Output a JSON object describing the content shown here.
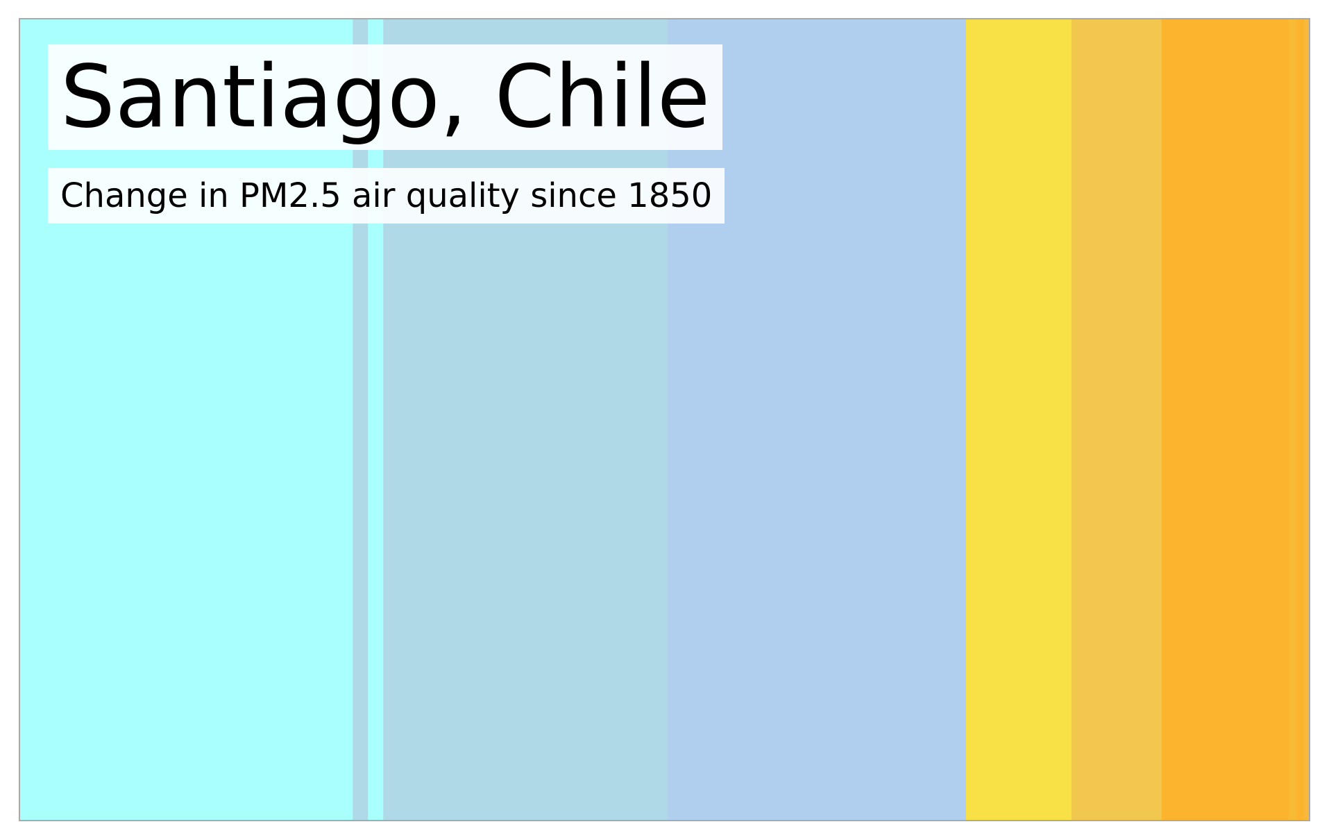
{
  "chart_data": {
    "type": "heatmap",
    "title": "Santiago, Chile",
    "subtitle": "Change in PM2.5 air quality since 1850",
    "xlabel": "",
    "ylabel": "",
    "grid": false,
    "legend": "none",
    "stripes": [
      {
        "color": "#a8fffc",
        "weight": 26.2
      },
      {
        "color": "#b0d9e8",
        "weight": 1.2
      },
      {
        "color": "#a8fffc",
        "weight": 1.2
      },
      {
        "color": "#b0d9e8",
        "weight": 22.4
      },
      {
        "color": "#b0cfee",
        "weight": 23.5
      },
      {
        "color": "#f8e047",
        "weight": 8.3
      },
      {
        "color": "#f2c74e",
        "weight": 7.1
      },
      {
        "color": "#fcb42e",
        "weight": 10.0
      },
      {
        "color": "#f8bb36",
        "weight": 0.6
      },
      {
        "color": "#fcb42e",
        "weight": 0.6
      },
      {
        "color": "#f8b83e",
        "weight": 0.4
      }
    ]
  }
}
